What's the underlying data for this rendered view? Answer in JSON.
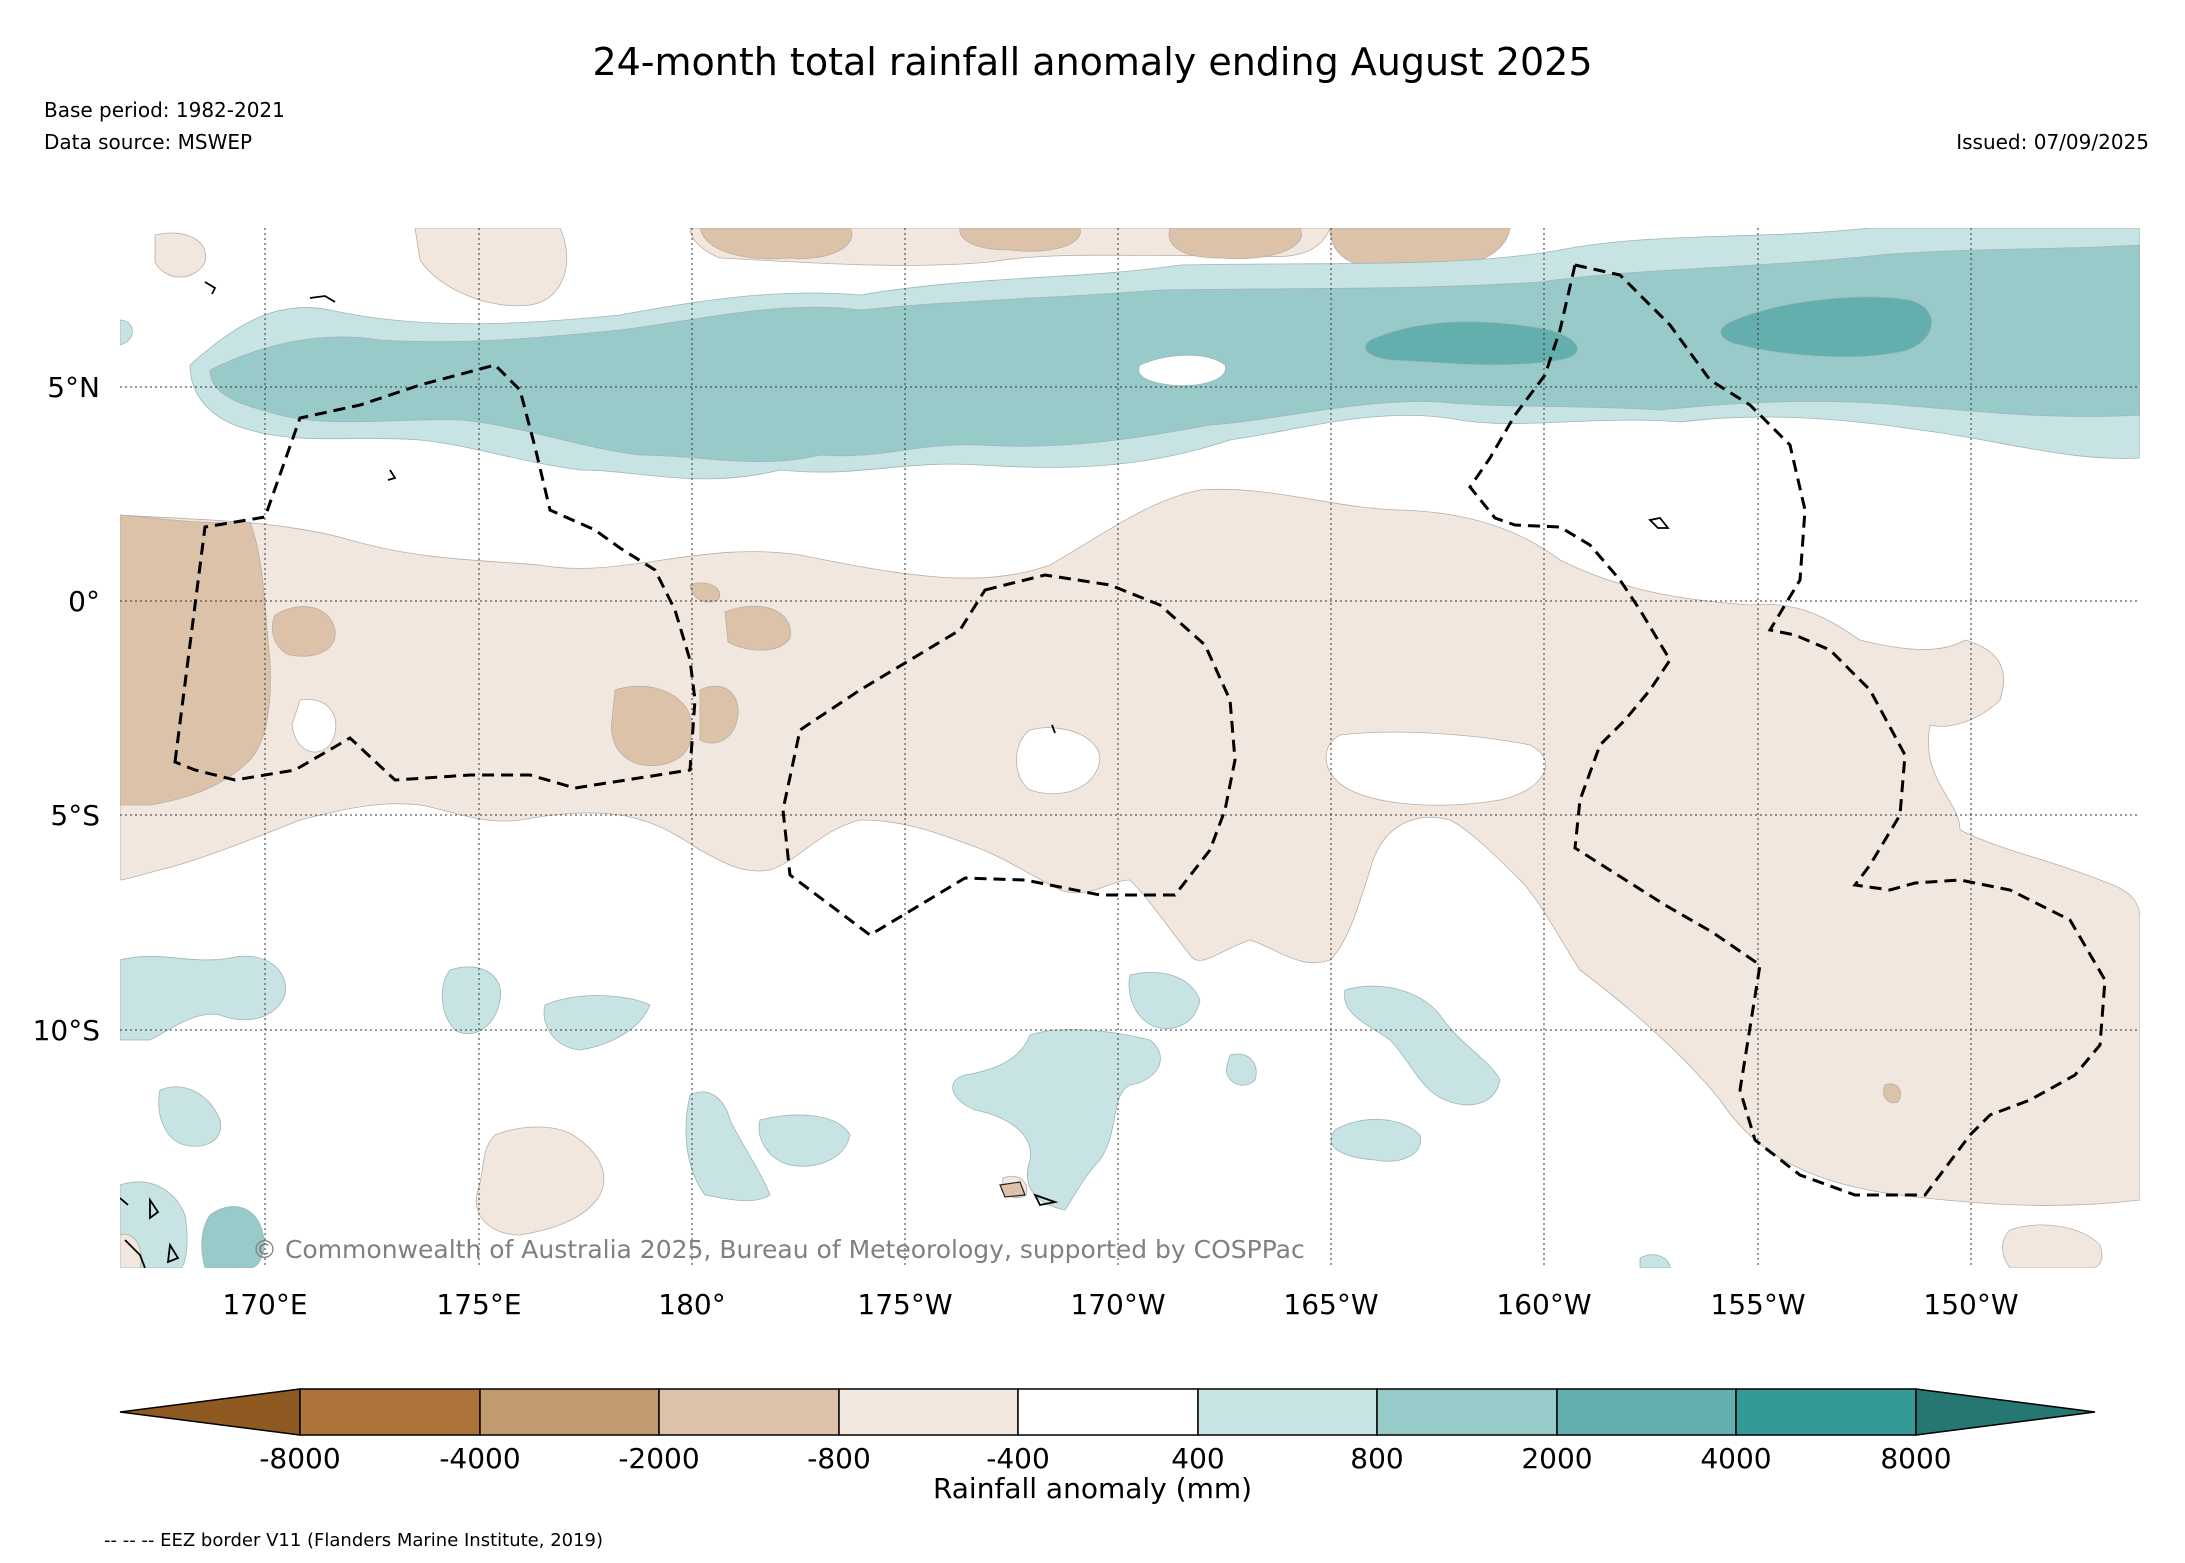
{
  "header": {
    "title": "24-month total rainfall anomaly ending August 2025",
    "base_period": "Base period: 1982-2021",
    "data_source": "Data source: MSWEP",
    "issued": "Issued: 07/09/2025"
  },
  "map": {
    "lat_labels": [
      "5°N",
      "0°",
      "5°S",
      "10°S"
    ],
    "lon_labels": [
      "170°E",
      "175°E",
      "180°",
      "175°W",
      "170°W",
      "165°W",
      "160°W",
      "155°W",
      "150°W"
    ],
    "copyright": "© Commonwealth of Australia 2025, Bureau of Meteorology, supported by COSPPac",
    "colors": {
      "dry_extreme": "#8f5a22",
      "dry_4": "#ad7439",
      "dry_3": "#c29a70",
      "dry_2": "#dbc2a9",
      "dry_1": "#f1e7de",
      "neutral": "#ffffff",
      "wet_1": "#c8e3e3",
      "wet_2": "#98caca",
      "wet_3": "#62afae",
      "wet_4": "#339a95",
      "wet_extreme": "#267672"
    }
  },
  "colorbar": {
    "ticks": [
      "-8000",
      "-4000",
      "-2000",
      "-800",
      "-400",
      "400",
      "800",
      "2000",
      "4000",
      "8000"
    ],
    "label": "Rainfall anomaly (mm)"
  },
  "legend": {
    "eez": "-- -- -- EEZ border V11 (Flanders Marine Institute, 2019)"
  }
}
